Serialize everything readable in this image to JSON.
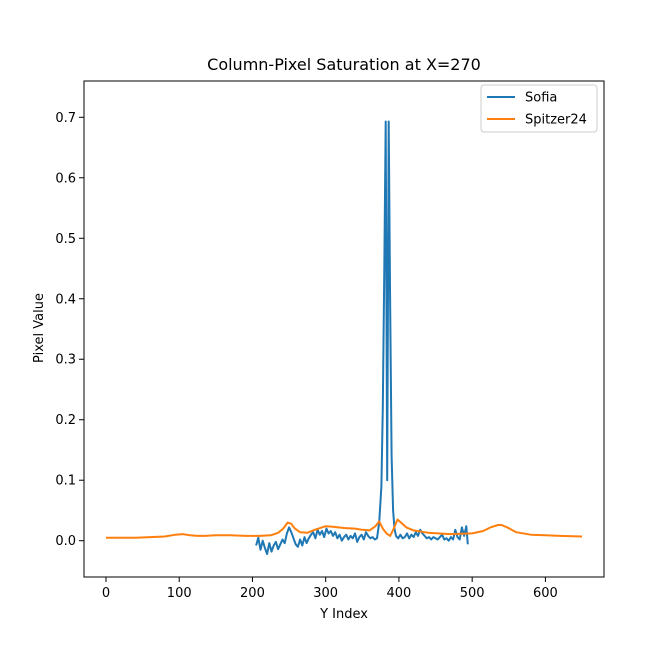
{
  "chart_data": {
    "type": "line",
    "title": "Column-Pixel Saturation at X=270",
    "xlabel": "Y Index",
    "ylabel": "Pixel Value",
    "xlim": [
      -30,
      680
    ],
    "ylim": [
      -0.06,
      0.76
    ],
    "xticks": [
      0,
      100,
      200,
      300,
      400,
      500,
      600
    ],
    "yticks": [
      0.0,
      0.1,
      0.2,
      0.3,
      0.4,
      0.5,
      0.6,
      0.7
    ],
    "ytick_labels": [
      "0.0",
      "0.1",
      "0.2",
      "0.3",
      "0.4",
      "0.5",
      "0.6",
      "0.7"
    ],
    "grid": false,
    "legend_position": "top-right",
    "series": [
      {
        "name": "Sofia",
        "color": "#1f77b4",
        "x": [
          205,
          208,
          211,
          214,
          217,
          220,
          223,
          226,
          229,
          232,
          235,
          238,
          241,
          244,
          247,
          250,
          253,
          256,
          259,
          262,
          265,
          268,
          271,
          274,
          277,
          280,
          283,
          286,
          289,
          292,
          295,
          298,
          301,
          304,
          307,
          310,
          313,
          316,
          319,
          322,
          325,
          328,
          331,
          334,
          337,
          340,
          343,
          346,
          349,
          352,
          355,
          358,
          361,
          364,
          367,
          370,
          373,
          376,
          378,
          380,
          382,
          384,
          386,
          388,
          390,
          392,
          394,
          396,
          399,
          402,
          405,
          408,
          411,
          414,
          417,
          420,
          423,
          426,
          429,
          432,
          435,
          438,
          441,
          444,
          447,
          450,
          453,
          456,
          459,
          462,
          465,
          468,
          471,
          474,
          477,
          480,
          483,
          486,
          489,
          492,
          494
        ],
        "y": [
          -0.008,
          0.005,
          -0.015,
          0.0,
          -0.012,
          -0.022,
          -0.004,
          -0.018,
          -0.008,
          -0.002,
          -0.014,
          -0.006,
          0.002,
          -0.004,
          0.012,
          0.022,
          0.014,
          0.004,
          -0.006,
          -0.01,
          0.002,
          -0.008,
          0.006,
          -0.004,
          0.004,
          0.01,
          0.014,
          0.004,
          0.018,
          0.01,
          0.016,
          0.006,
          0.02,
          0.012,
          0.016,
          0.008,
          0.014,
          0.004,
          0.01,
          0.0,
          0.006,
          0.01,
          0.002,
          0.008,
          0.004,
          0.012,
          -0.002,
          0.006,
          0.01,
          0.002,
          0.014,
          0.008,
          0.004,
          0.006,
          0.002,
          0.004,
          0.03,
          0.09,
          0.22,
          0.45,
          0.693,
          0.1,
          0.693,
          0.4,
          0.14,
          0.05,
          0.02,
          0.008,
          0.004,
          0.01,
          0.004,
          0.006,
          0.012,
          0.004,
          0.01,
          0.006,
          0.014,
          0.008,
          0.018,
          0.012,
          0.008,
          0.004,
          0.006,
          0.002,
          0.006,
          0.004,
          0.002,
          0.006,
          0.01,
          0.002,
          0.004,
          0.0,
          0.006,
          0.002,
          0.018,
          0.006,
          0.002,
          0.022,
          0.008,
          0.024,
          -0.006
        ]
      },
      {
        "name": "Spitzer24",
        "color": "#ff7f0e",
        "x": [
          0,
          20,
          40,
          60,
          80,
          95,
          105,
          115,
          125,
          135,
          150,
          170,
          190,
          210,
          225,
          235,
          242,
          248,
          253,
          258,
          265,
          275,
          285,
          300,
          310,
          325,
          340,
          350,
          360,
          368,
          373,
          378,
          383,
          388,
          393,
          398,
          403,
          410,
          420,
          440,
          470,
          500,
          515,
          525,
          535,
          540,
          548,
          560,
          580,
          600,
          620,
          650
        ],
        "y": [
          0.005,
          0.005,
          0.005,
          0.006,
          0.007,
          0.01,
          0.011,
          0.009,
          0.008,
          0.008,
          0.009,
          0.009,
          0.008,
          0.008,
          0.009,
          0.013,
          0.02,
          0.03,
          0.028,
          0.02,
          0.014,
          0.013,
          0.018,
          0.024,
          0.023,
          0.021,
          0.02,
          0.018,
          0.017,
          0.024,
          0.032,
          0.02,
          0.012,
          0.008,
          0.02,
          0.035,
          0.03,
          0.022,
          0.017,
          0.013,
          0.011,
          0.012,
          0.016,
          0.022,
          0.026,
          0.026,
          0.022,
          0.014,
          0.01,
          0.009,
          0.008,
          0.007
        ]
      }
    ]
  }
}
